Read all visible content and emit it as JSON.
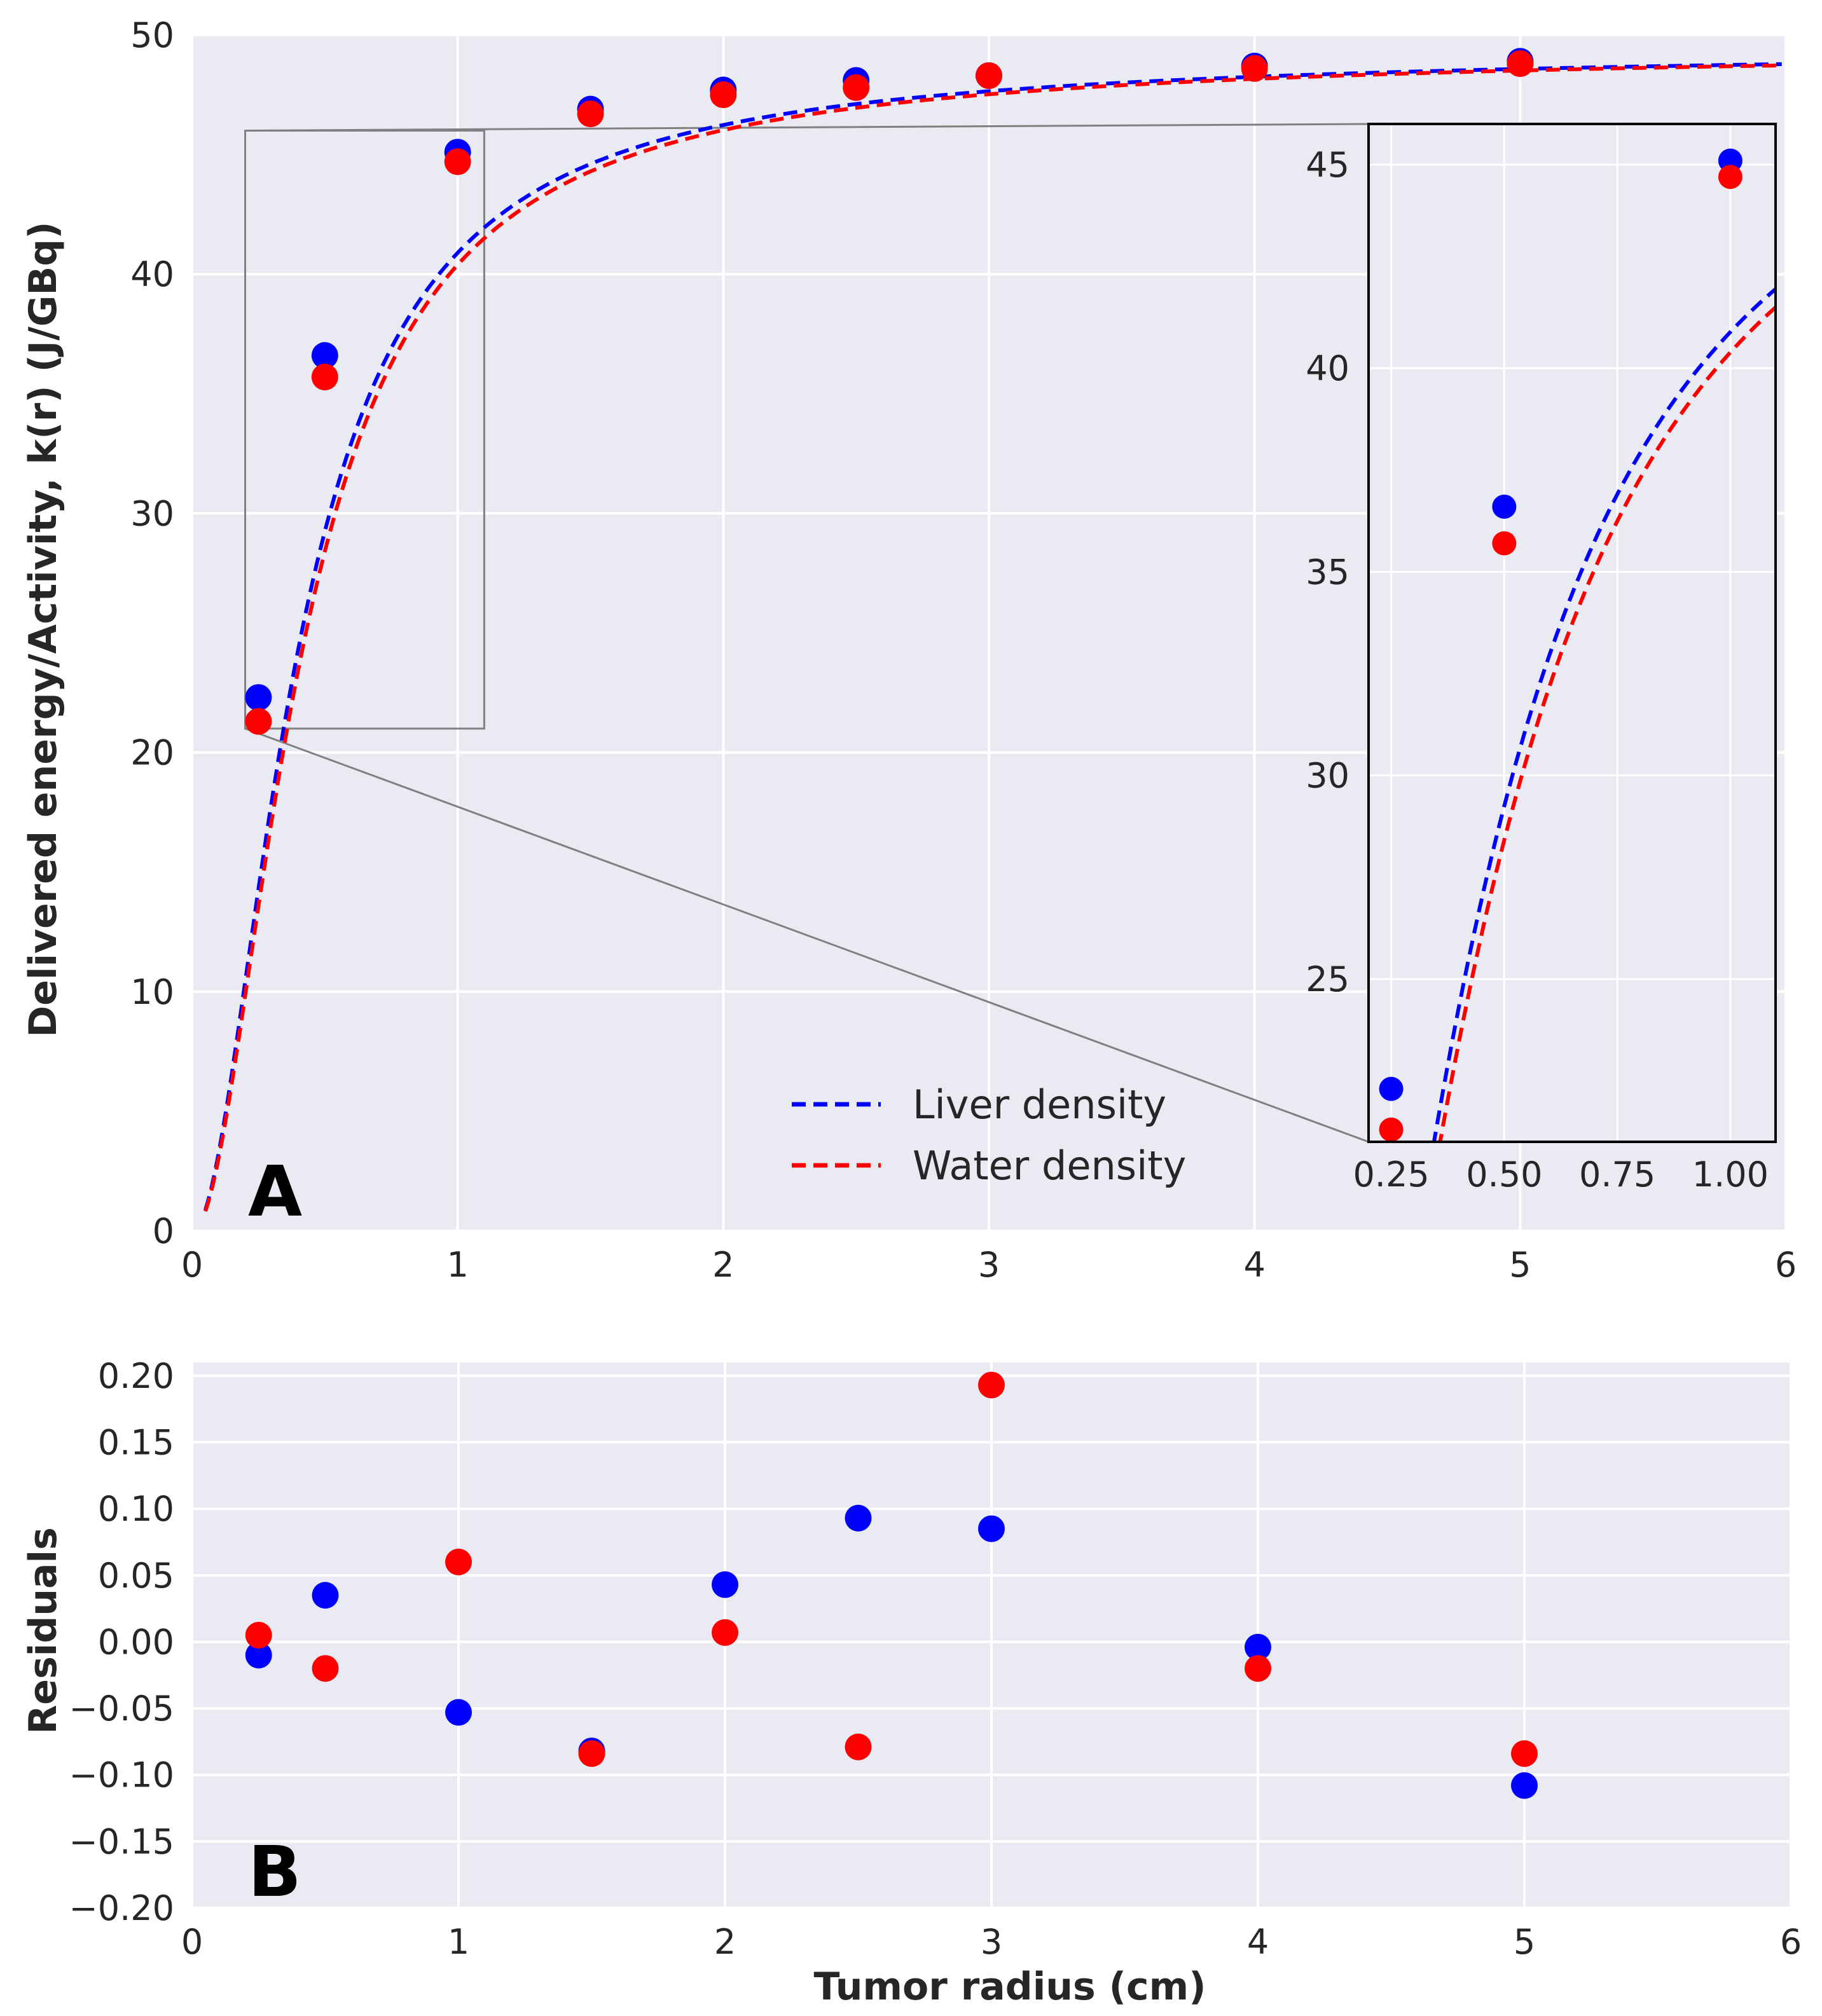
{
  "colors": {
    "liver": "#0000ff",
    "water": "#ff0000",
    "background": "#eaeaf2",
    "grid": "#ffffff",
    "zoom_box": "#808080",
    "inset_frame": "#000000"
  },
  "chart_data": [
    {
      "id": "A",
      "type": "scatter",
      "panel_label": "A",
      "title": "",
      "xlabel": "",
      "ylabel": "Delivered energy/Activity, k(r) (J/GBq)",
      "xlim": [
        0,
        6
      ],
      "ylim": [
        0,
        50
      ],
      "xticks": [
        0,
        1,
        2,
        3,
        4,
        5,
        6
      ],
      "xtick_labels": [
        "0",
        "1",
        "2",
        "3",
        "4",
        "5",
        "6"
      ],
      "yticks": [
        0,
        10,
        20,
        30,
        40,
        50
      ],
      "ytick_labels": [
        "0",
        "10",
        "20",
        "30",
        "40",
        "50"
      ],
      "grid": true,
      "legend_position": "lower-center",
      "series": [
        {
          "name": "Liver density",
          "color": "#0000ff",
          "style": "dashed-fit",
          "x": [
            0.25,
            0.5,
            1.0,
            1.5,
            2.0,
            2.5,
            3.0,
            4.0,
            5.0
          ],
          "y": [
            22.3,
            36.6,
            45.1,
            46.9,
            47.7,
            48.1,
            48.3,
            48.7,
            48.9
          ],
          "fit": {
            "kmax": 49.6,
            "a": 0.078,
            "b": 0.135
          }
        },
        {
          "name": "Water density",
          "color": "#ff0000",
          "style": "dashed-fit",
          "x": [
            0.25,
            0.5,
            1.0,
            1.5,
            2.0,
            2.5,
            3.0,
            4.0,
            5.0
          ],
          "y": [
            21.3,
            35.7,
            44.7,
            46.7,
            47.5,
            47.8,
            48.3,
            48.6,
            48.8
          ],
          "fit": {
            "kmax": 49.6,
            "a": 0.083,
            "b": 0.145
          }
        }
      ],
      "zoom_region": {
        "x": [
          0.2,
          1.1
        ],
        "y": [
          21.0,
          46.0
        ]
      },
      "inset": {
        "xlim": [
          0.2,
          1.1
        ],
        "ylim": [
          21.0,
          46.0
        ],
        "xticks": [
          0.25,
          0.5,
          0.75,
          1.0
        ],
        "xtick_labels": [
          "0.25",
          "0.50",
          "0.75",
          "1.00"
        ],
        "yticks": [
          25,
          30,
          35,
          40,
          45
        ],
        "ytick_labels": [
          "25",
          "30",
          "35",
          "40",
          "45"
        ]
      }
    },
    {
      "id": "B",
      "type": "scatter",
      "panel_label": "B",
      "title": "",
      "xlabel": "Tumor radius (cm)",
      "ylabel": "Residuals",
      "xlim": [
        0,
        6
      ],
      "ylim": [
        -0.2,
        0.21
      ],
      "xticks": [
        0,
        1,
        2,
        3,
        4,
        5,
        6
      ],
      "xtick_labels": [
        "0",
        "1",
        "2",
        "3",
        "4",
        "5",
        "6"
      ],
      "yticks": [
        -0.2,
        -0.15,
        -0.1,
        -0.05,
        0.0,
        0.05,
        0.1,
        0.15,
        0.2
      ],
      "ytick_labels": [
        "−0.20",
        "−0.15",
        "−0.10",
        "−0.05",
        "0.00",
        "0.05",
        "0.10",
        "0.15",
        "0.20"
      ],
      "grid": true,
      "series": [
        {
          "name": "Liver density",
          "color": "#0000ff",
          "x": [
            0.25,
            0.5,
            1.0,
            1.5,
            2.0,
            2.5,
            3.0,
            4.0,
            5.0
          ],
          "y": [
            -0.01,
            0.035,
            -0.053,
            -0.082,
            0.043,
            0.093,
            0.085,
            -0.004,
            -0.108
          ]
        },
        {
          "name": "Water density",
          "color": "#ff0000",
          "x": [
            0.25,
            0.5,
            1.0,
            1.5,
            2.0,
            2.5,
            3.0,
            4.0,
            5.0
          ],
          "y": [
            0.005,
            -0.02,
            0.06,
            -0.084,
            0.007,
            -0.079,
            0.193,
            -0.02,
            -0.084
          ]
        }
      ]
    }
  ]
}
